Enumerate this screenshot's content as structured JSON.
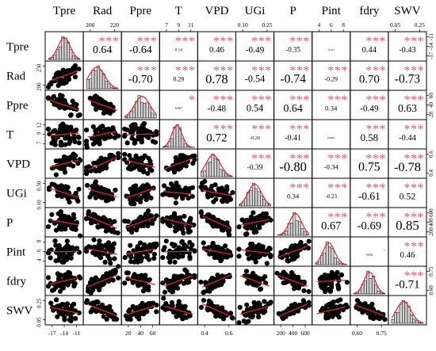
{
  "chart_data": {
    "type": "scatter",
    "subtype": "correlation-matrix",
    "title": "",
    "variables": [
      "Tpre",
      "Rad",
      "Ppre",
      "T",
      "VPD",
      "UGi",
      "P",
      "Pint",
      "fdry",
      "SWV"
    ],
    "correlations": [
      [
        "",
        "0.64",
        "-0.64",
        "0.14",
        "0.46",
        "-0.49",
        "-0.35",
        "-0.017",
        "0.44",
        "-0.43"
      ],
      [
        "",
        "",
        "-0.70",
        "0.29",
        "0.78",
        "-0.54",
        "-0.74",
        "-0.29",
        "0.70",
        "-0.73"
      ],
      [
        "",
        "",
        "",
        "0.067",
        "-0.48",
        "0.54",
        "0.64",
        "0.34",
        "-0.49",
        "0.63"
      ],
      [
        "",
        "",
        "",
        "",
        "0.72",
        "-0.20",
        "-0.41",
        "0.0061",
        "0.58",
        "-0.44"
      ],
      [
        "",
        "",
        "",
        "",
        "",
        "-0.39",
        "-0.80",
        "-0.34",
        "0.75",
        "-0.78"
      ],
      [
        "",
        "",
        "",
        "",
        "",
        "",
        "0.34",
        "-0.23",
        "-0.61",
        "0.52"
      ],
      [
        "",
        "",
        "",
        "",
        "",
        "",
        "",
        "0.67",
        "-0.69",
        "0.85"
      ],
      [
        "",
        "",
        "",
        "",
        "",
        "",
        "",
        "",
        "0.038",
        "0.46"
      ],
      [
        "",
        "",
        "",
        "",
        "",
        "",
        "",
        "",
        "",
        "-0.71"
      ],
      [
        "",
        "",
        "",
        "",
        "",
        "",
        "",
        "",
        "",
        ""
      ]
    ],
    "significance": [
      [
        "",
        "***",
        "***",
        "***",
        "***",
        "***",
        "***",
        "",
        "***",
        "***"
      ],
      [
        "",
        "",
        "***",
        "***",
        "***",
        "***",
        "***",
        "***",
        "***",
        "***"
      ],
      [
        "",
        "",
        "",
        "*",
        "***",
        "***",
        "***",
        "***",
        "***",
        "***"
      ],
      [
        "",
        "",
        "",
        "",
        "***",
        "***",
        "***",
        "",
        "***",
        "***"
      ],
      [
        "",
        "",
        "",
        "",
        "",
        "***",
        "***",
        "***",
        "***",
        "***"
      ],
      [
        "",
        "",
        "",
        "",
        "",
        "",
        "***",
        "***",
        "***",
        "***"
      ],
      [
        "",
        "",
        "",
        "",
        "",
        "",
        "",
        "***",
        "***",
        "***"
      ],
      [
        "",
        "",
        "",
        "",
        "",
        "",
        "",
        "",
        ".",
        "***"
      ],
      [
        "",
        "",
        "",
        "",
        "",
        "",
        "",
        "",
        "",
        "***"
      ],
      [
        "",
        "",
        "",
        "",
        "",
        "",
        "",
        "",
        "",
        ""
      ]
    ],
    "top_axis_ticks": [
      {
        "col": 1,
        "labels": [
          "200",
          "220"
        ]
      },
      {
        "col": 3,
        "labels": [
          "7",
          "9",
          "11"
        ]
      },
      {
        "col": 5,
        "labels": [
          "0.10",
          "0.25"
        ]
      },
      {
        "col": 7,
        "labels": [
          "4",
          "6",
          "8"
        ]
      },
      {
        "col": 9,
        "labels": [
          "0.05",
          "0.25"
        ]
      }
    ],
    "bottom_axis_ticks": [
      {
        "col": 0,
        "labels": [
          "-17",
          "-14",
          "-11"
        ]
      },
      {
        "col": 2,
        "labels": [
          "20",
          "40",
          "60"
        ]
      },
      {
        "col": 4,
        "labels": [
          "0.4",
          "0.6"
        ]
      },
      {
        "col": 6,
        "labels": [
          "200",
          "400",
          "600"
        ]
      },
      {
        "col": 8,
        "labels": [
          "0.60",
          "0.75"
        ]
      }
    ],
    "left_axis_ticks": [
      {
        "row": 1,
        "labels": [
          "230",
          "200"
        ]
      },
      {
        "row": 3,
        "labels": [
          "12",
          "9",
          "7"
        ]
      },
      {
        "row": 5,
        "labels": [
          "0.30",
          "0.10"
        ]
      },
      {
        "row": 7,
        "labels": [
          "8",
          "6",
          "4"
        ]
      },
      {
        "row": 9,
        "labels": [
          "0.25",
          "0.05"
        ]
      }
    ],
    "right_axis_ticks": [
      {
        "row": 0,
        "labels": [
          "-11",
          "-14",
          "-17"
        ]
      },
      {
        "row": 2,
        "labels": [
          "60",
          "40",
          "20"
        ]
      },
      {
        "row": 4,
        "labels": [
          "0.6",
          "0.4"
        ]
      },
      {
        "row": 6,
        "labels": [
          "600",
          "400",
          "200"
        ]
      },
      {
        "row": 8,
        "labels": [
          "0.75",
          "0.60"
        ]
      }
    ],
    "colors": {
      "points": "#000000",
      "fit_line": "#e8202a",
      "histogram_fill": "#cfcfcf",
      "density_line": "#e8202a",
      "significance_stars": "#f0506a",
      "grid_border": "#000000"
    }
  }
}
